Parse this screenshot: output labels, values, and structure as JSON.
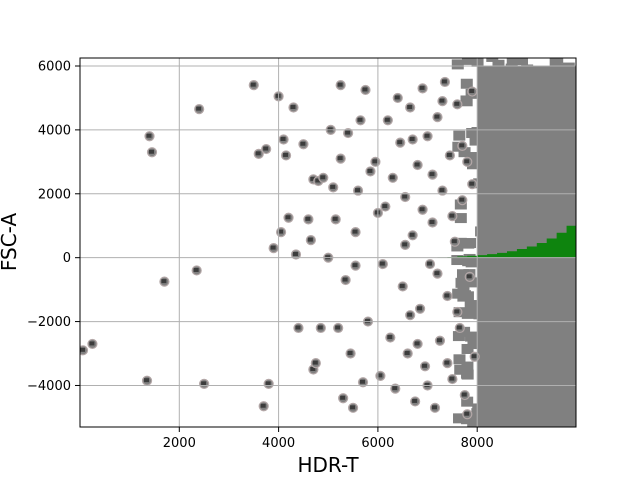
{
  "chart_data": {
    "type": "scatter",
    "xlabel": "HDR-T",
    "ylabel": "FSC-A",
    "xlim": [
      0,
      9990
    ],
    "ylim": [
      -5300,
      6250
    ],
    "x_ticks": [
      2000,
      4000,
      6000,
      8000
    ],
    "y_ticks": [
      -4000,
      -2000,
      0,
      2000,
      4000,
      6000
    ],
    "x_tick_labels": [
      "2000",
      "4000",
      "6000",
      "8000"
    ],
    "y_tick_labels": [
      "−4000",
      "−2000",
      "0",
      "2000",
      "4000",
      "6000"
    ],
    "grid": true,
    "legend": "none",
    "colors": {
      "point": "#808080",
      "point_edge": "#b3a7a7",
      "marker": "#3c3c3c",
      "dense": "#808080",
      "histogram": "#0e840e",
      "grid": "#b0b0b0"
    },
    "dense_region": {
      "x_start": 8000,
      "x_end": 9990,
      "y_min": -5300,
      "y_max": 6000
    },
    "histogram": {
      "x": [
        7000,
        7200,
        7400,
        7600,
        7800,
        8000,
        8200,
        8400,
        8600,
        8800,
        9000,
        9200,
        9400,
        9600,
        9800,
        9990
      ],
      "y": [
        0,
        10,
        20,
        40,
        60,
        80,
        110,
        150,
        200,
        270,
        350,
        460,
        600,
        780,
        1000,
        1250
      ]
    },
    "points": [
      [
        60,
        -2900
      ],
      [
        250,
        -2700
      ],
      [
        1350,
        -3850
      ],
      [
        1400,
        3800
      ],
      [
        1450,
        3300
      ],
      [
        1700,
        -750
      ],
      [
        2350,
        -400
      ],
      [
        2400,
        4650
      ],
      [
        2500,
        -3950
      ],
      [
        3500,
        5400
      ],
      [
        3600,
        3250
      ],
      [
        3750,
        3400
      ],
      [
        3700,
        -4650
      ],
      [
        3800,
        -3950
      ],
      [
        3900,
        300
      ],
      [
        4000,
        5050
      ],
      [
        4050,
        800
      ],
      [
        4100,
        3700
      ],
      [
        4150,
        3200
      ],
      [
        4200,
        1250
      ],
      [
        4300,
        4700
      ],
      [
        4350,
        100
      ],
      [
        4400,
        -2200
      ],
      [
        4500,
        3550
      ],
      [
        4600,
        1200
      ],
      [
        4650,
        550
      ],
      [
        4700,
        -3500
      ],
      [
        4700,
        2450
      ],
      [
        4750,
        -3300
      ],
      [
        4800,
        2400
      ],
      [
        4850,
        -2200
      ],
      [
        4900,
        2500
      ],
      [
        5000,
        0
      ],
      [
        5050,
        4000
      ],
      [
        5100,
        2200
      ],
      [
        5150,
        1200
      ],
      [
        5200,
        -2200
      ],
      [
        5250,
        3100
      ],
      [
        5250,
        5400
      ],
      [
        5300,
        -4400
      ],
      [
        5350,
        -700
      ],
      [
        5400,
        3900
      ],
      [
        5450,
        -3000
      ],
      [
        5500,
        -4700
      ],
      [
        5550,
        -250
      ],
      [
        5550,
        800
      ],
      [
        5600,
        2100
      ],
      [
        5650,
        4300
      ],
      [
        5700,
        -3900
      ],
      [
        5750,
        5250
      ],
      [
        5800,
        -2000
      ],
      [
        5850,
        2700
      ],
      [
        5950,
        3000
      ],
      [
        6000,
        1400
      ],
      [
        6050,
        -3700
      ],
      [
        6100,
        -200
      ],
      [
        6150,
        1600
      ],
      [
        6200,
        4300
      ],
      [
        6250,
        -2500
      ],
      [
        6300,
        2500
      ],
      [
        6350,
        -4100
      ],
      [
        6400,
        5000
      ],
      [
        6450,
        3600
      ],
      [
        6500,
        -900
      ],
      [
        6550,
        1900
      ],
      [
        6600,
        -3000
      ],
      [
        6650,
        4700
      ],
      [
        6700,
        700
      ],
      [
        6750,
        -4500
      ],
      [
        6800,
        2900
      ],
      [
        6850,
        -1600
      ],
      [
        6900,
        5300
      ],
      [
        6950,
        -3400
      ],
      [
        7000,
        3800
      ],
      [
        7050,
        -200
      ],
      [
        7100,
        1100
      ],
      [
        7150,
        -4700
      ],
      [
        7200,
        4400
      ],
      [
        7250,
        -2600
      ],
      [
        7300,
        2100
      ],
      [
        7350,
        5500
      ],
      [
        7400,
        -1200
      ],
      [
        7450,
        3200
      ],
      [
        7500,
        -3800
      ],
      [
        7550,
        500
      ],
      [
        7600,
        4800
      ],
      [
        7650,
        -2200
      ],
      [
        7700,
        1800
      ],
      [
        7750,
        -4300
      ],
      [
        7800,
        3000
      ],
      [
        7850,
        -600
      ],
      [
        7900,
        5200
      ],
      [
        7950,
        -3100
      ],
      [
        6550,
        400
      ],
      [
        6650,
        -1800
      ],
      [
        6700,
        3700
      ],
      [
        6800,
        -2700
      ],
      [
        6900,
        1500
      ],
      [
        7000,
        -4000
      ],
      [
        7100,
        2600
      ],
      [
        7200,
        -500
      ],
      [
        7300,
        4900
      ],
      [
        7400,
        -3300
      ],
      [
        7500,
        1300
      ],
      [
        7600,
        -1700
      ],
      [
        7700,
        3500
      ],
      [
        7800,
        -4900
      ],
      [
        7900,
        2300
      ]
    ]
  }
}
